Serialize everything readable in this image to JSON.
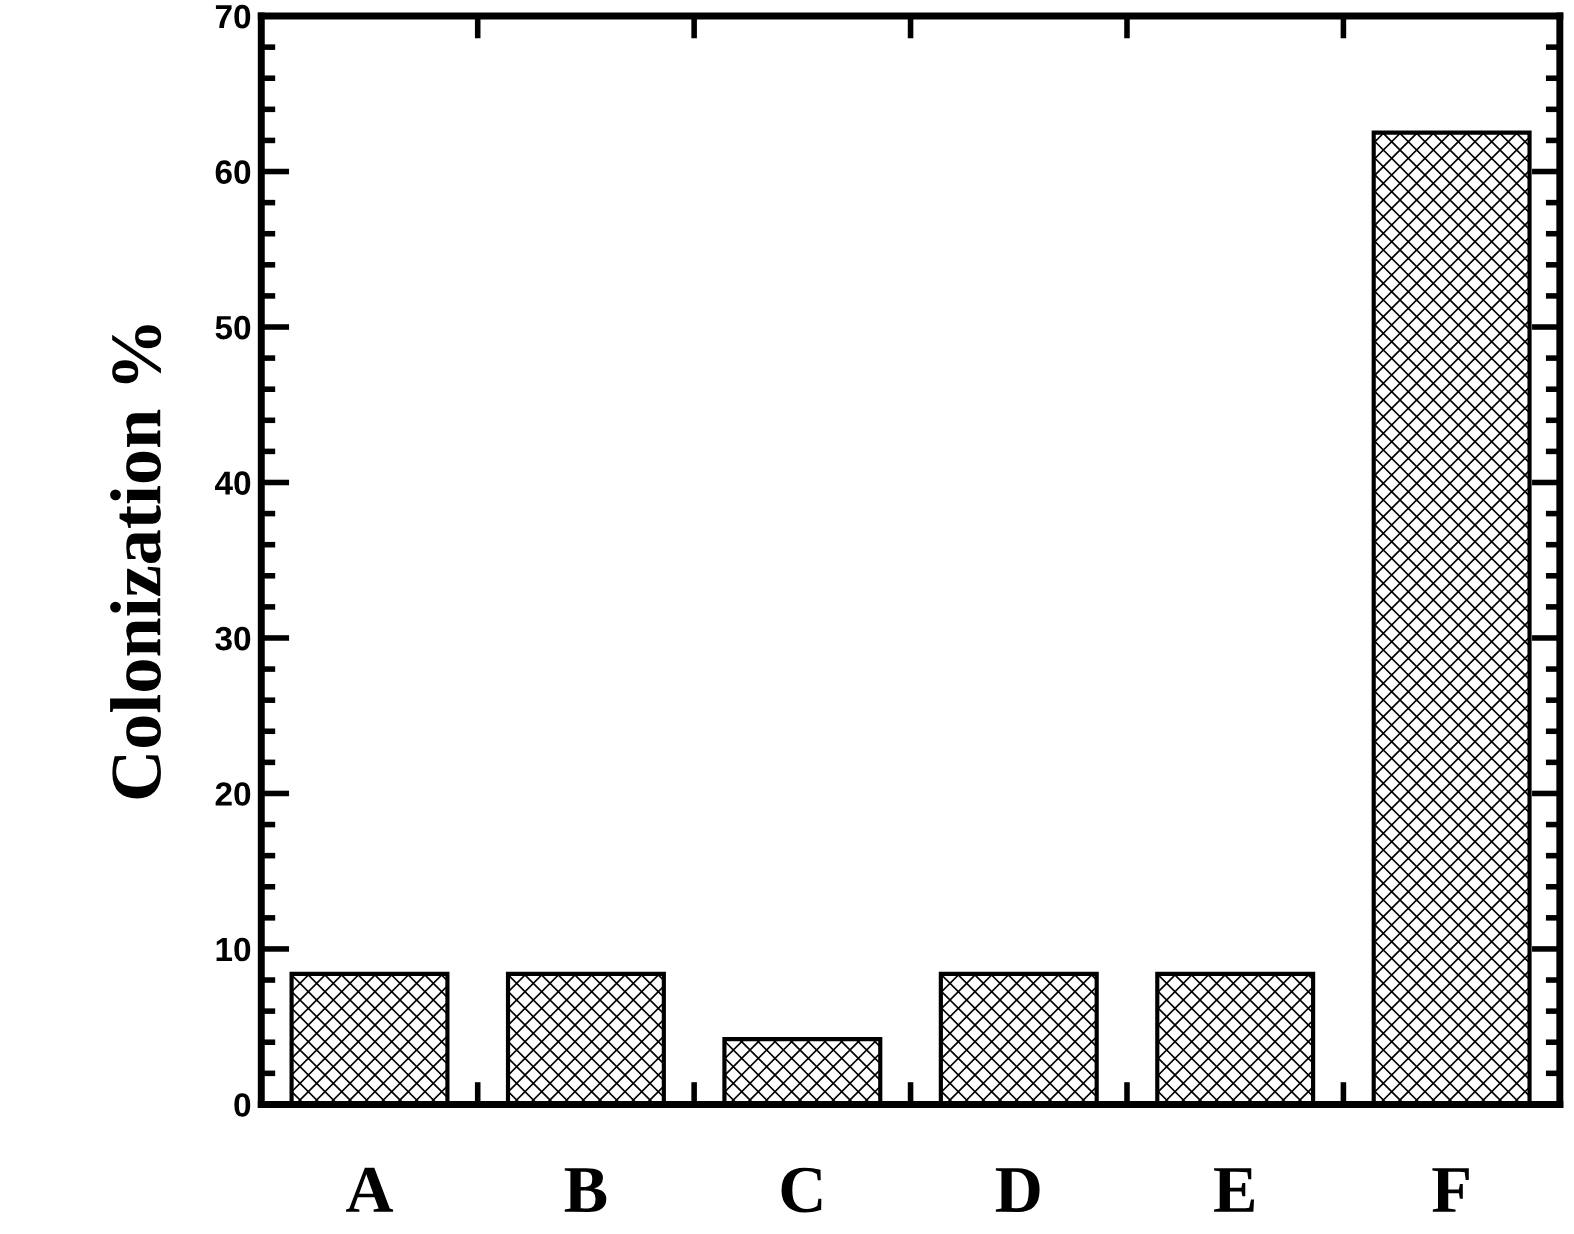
{
  "chart_data": {
    "type": "bar",
    "ylabel": "Colonization %",
    "categories": [
      "A",
      "B",
      "C",
      "D",
      "E",
      "F"
    ],
    "values": [
      8.4,
      8.4,
      4.2,
      8.4,
      8.4,
      62.5
    ],
    "color": "#000000",
    "ylim": [
      0,
      70
    ],
    "yticks": [
      0,
      10,
      20,
      30,
      40,
      50,
      60,
      70
    ],
    "grid": false,
    "legend": false
  }
}
